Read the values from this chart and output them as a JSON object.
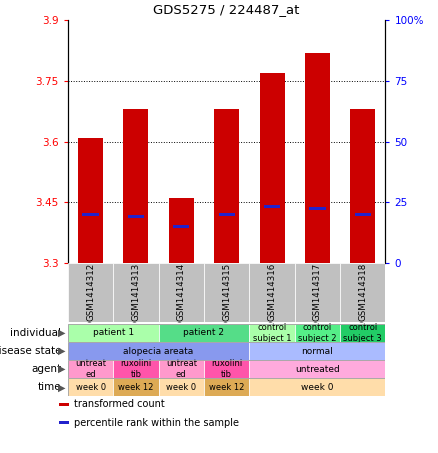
{
  "title": "GDS5275 / 224487_at",
  "samples": [
    "GSM1414312",
    "GSM1414313",
    "GSM1414314",
    "GSM1414315",
    "GSM1414316",
    "GSM1414317",
    "GSM1414318"
  ],
  "bar_values": [
    3.61,
    3.68,
    3.46,
    3.68,
    3.77,
    3.82,
    3.68
  ],
  "bar_bottom": 3.3,
  "percentile_values": [
    3.42,
    3.415,
    3.39,
    3.42,
    3.44,
    3.435,
    3.42
  ],
  "ylim": [
    3.3,
    3.9
  ],
  "yticks_left": [
    3.3,
    3.45,
    3.6,
    3.75,
    3.9
  ],
  "yticks_right": [
    0,
    25,
    50,
    75,
    100
  ],
  "yticks_right_labels": [
    "0",
    "25",
    "50",
    "75",
    "100%"
  ],
  "bar_color": "#CC0000",
  "percentile_color": "#2222CC",
  "sample_bg_color": "#C0C0C0",
  "individual_row": {
    "label": "individual",
    "groups": [
      {
        "text": "patient 1",
        "cols": [
          0,
          1
        ],
        "color": "#AAFFAA"
      },
      {
        "text": "patient 2",
        "cols": [
          2,
          3
        ],
        "color": "#55DD88"
      },
      {
        "text": "control\nsubject 1",
        "cols": [
          4
        ],
        "color": "#AAFFAA"
      },
      {
        "text": "control\nsubject 2",
        "cols": [
          5
        ],
        "color": "#55EE88"
      },
      {
        "text": "control\nsubject 3",
        "cols": [
          6
        ],
        "color": "#22CC66"
      }
    ]
  },
  "disease_row": {
    "label": "disease state",
    "groups": [
      {
        "text": "alopecia areata",
        "cols": [
          0,
          1,
          2,
          3
        ],
        "color": "#8899EE"
      },
      {
        "text": "normal",
        "cols": [
          4,
          5,
          6
        ],
        "color": "#AABBFF"
      }
    ]
  },
  "agent_row": {
    "label": "agent",
    "groups": [
      {
        "text": "untreat\ned",
        "cols": [
          0
        ],
        "color": "#FF99CC"
      },
      {
        "text": "ruxolini\ntib",
        "cols": [
          1
        ],
        "color": "#FF55AA"
      },
      {
        "text": "untreat\ned",
        "cols": [
          2
        ],
        "color": "#FF99CC"
      },
      {
        "text": "ruxolini\ntib",
        "cols": [
          3
        ],
        "color": "#FF55AA"
      },
      {
        "text": "untreated",
        "cols": [
          4,
          5,
          6
        ],
        "color": "#FFAADD"
      }
    ]
  },
  "time_row": {
    "label": "time",
    "groups": [
      {
        "text": "week 0",
        "cols": [
          0
        ],
        "color": "#FFDDAA"
      },
      {
        "text": "week 12",
        "cols": [
          1
        ],
        "color": "#DDAA55"
      },
      {
        "text": "week 0",
        "cols": [
          2
        ],
        "color": "#FFDDAA"
      },
      {
        "text": "week 12",
        "cols": [
          3
        ],
        "color": "#DDAA55"
      },
      {
        "text": "week 0",
        "cols": [
          4,
          5,
          6
        ],
        "color": "#FFDDAA"
      }
    ]
  },
  "legend": [
    {
      "color": "#CC0000",
      "label": "transformed count"
    },
    {
      "color": "#2222CC",
      "label": "percentile rank within the sample"
    }
  ]
}
